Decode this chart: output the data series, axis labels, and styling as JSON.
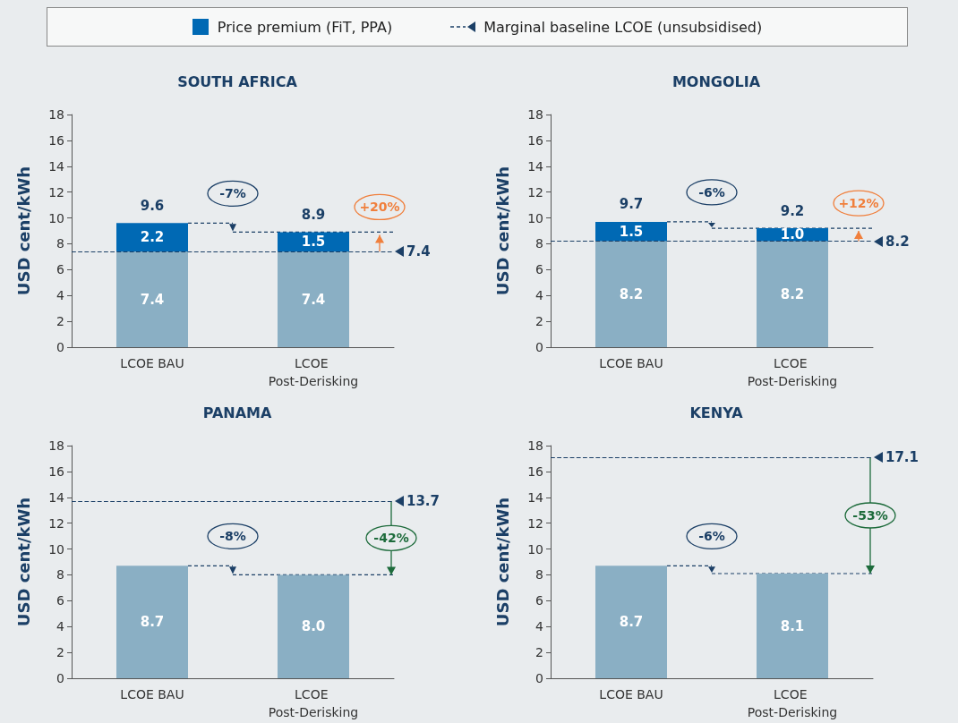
{
  "chart_data": [
    {
      "type": "bar",
      "title": "SOUTH AFRICA",
      "ylabel": "USD cent/kWh",
      "categories": [
        "LCOE BAU",
        "LCOE Post-Derisking"
      ],
      "stacked": true,
      "legend": "top",
      "ylim": [
        0,
        18
      ],
      "yticks": [
        0,
        2,
        4,
        6,
        8,
        10,
        12,
        14,
        16,
        18
      ],
      "grid": false,
      "series": [
        {
          "color": "#8aafc4",
          "values": [
            7.4,
            7.4
          ],
          "value_labels": [
            "7.4",
            "7.4"
          ]
        },
        {
          "name": "Price premium (FiT, PPA)",
          "color": "#0069b4",
          "values": [
            2.2,
            1.5
          ],
          "value_labels": [
            "2.2",
            "1.5"
          ]
        }
      ],
      "totals": [
        "9.6",
        "8.9"
      ],
      "ref_lines": [
        {
          "axis": "y",
          "value": 7.4,
          "label": "7.4",
          "color": "#1b3f66",
          "line_style": "dashed"
        }
      ],
      "annotations": [
        "-7%",
        "+20%",
        "Marginal baseline LCOE (unsubsidised)"
      ]
    },
    {
      "type": "bar",
      "title": "MONGOLIA",
      "ylabel": "USD cent/kWh",
      "categories": [
        "LCOE BAU",
        "LCOE Post-Derisking"
      ],
      "stacked": true,
      "ylim": [
        0,
        18
      ],
      "yticks": [
        0,
        2,
        4,
        6,
        8,
        10,
        12,
        14,
        16,
        18
      ],
      "grid": false,
      "series": [
        {
          "color": "#8aafc4",
          "values": [
            8.2,
            8.2
          ],
          "value_labels": [
            "8.2",
            "8.2"
          ]
        },
        {
          "color": "#0069b4",
          "values": [
            1.5,
            1.0
          ],
          "value_labels": [
            "1.5",
            "1.0"
          ]
        }
      ],
      "totals": [
        "9.7",
        "9.2"
      ],
      "ref_lines": [
        {
          "axis": "y",
          "value": 8.2,
          "label": "8.2",
          "color": "#1b3f66",
          "line_style": "dashed"
        }
      ],
      "annotations": [
        "-6%",
        "+12%"
      ]
    },
    {
      "type": "bar",
      "title": "PANAMA",
      "ylabel": "USD cent/kWh",
      "categories": [
        "LCOE BAU",
        "LCOE Post-Derisking"
      ],
      "stacked": true,
      "ylim": [
        0,
        18
      ],
      "yticks": [
        0,
        2,
        4,
        6,
        8,
        10,
        12,
        14,
        16,
        18
      ],
      "grid": false,
      "series": [
        {
          "color": "#8aafc4",
          "values": [
            8.7,
            8.0
          ],
          "value_labels": [
            "8.7",
            "8.0"
          ]
        }
      ],
      "ref_lines": [
        {
          "axis": "y",
          "value": 13.7,
          "label": "13.7",
          "color": "#1b3f66",
          "line_style": "dashed"
        }
      ],
      "annotations": [
        "-8%",
        "-42%"
      ]
    },
    {
      "type": "bar",
      "title": "KENYA",
      "ylabel": "USD cent/kWh",
      "categories": [
        "LCOE BAU",
        "LCOE Post-Derisking"
      ],
      "stacked": true,
      "ylim": [
        0,
        18
      ],
      "yticks": [
        0,
        2,
        4,
        6,
        8,
        10,
        12,
        14,
        16,
        18
      ],
      "grid": false,
      "series": [
        {
          "color": "#8aafc4",
          "values": [
            8.7,
            8.1
          ],
          "value_labels": [
            "8.7",
            "8.1"
          ]
        }
      ],
      "ref_lines": [
        {
          "axis": "y",
          "value": 17.1,
          "label": "17.1",
          "color": "#1b3f66",
          "line_style": "dashed"
        }
      ],
      "annotations": [
        "-6%",
        "-53%"
      ]
    }
  ]
}
